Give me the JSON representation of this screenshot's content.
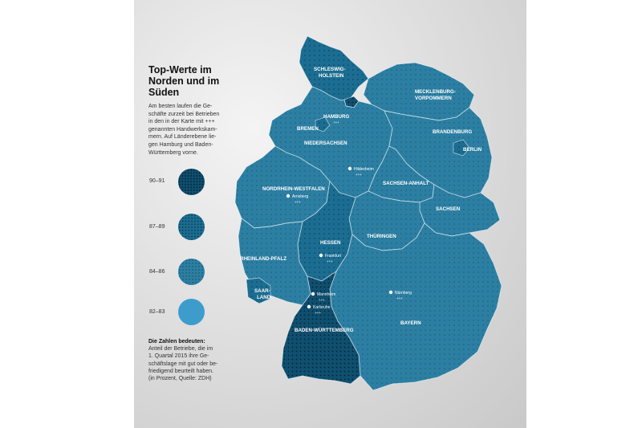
{
  "title": [
    "Top-Werte im",
    "Norden und im",
    "Süden"
  ],
  "intro": [
    "Am besten laufen die Ge-",
    "schäfte zurzeit bei Betrieben",
    "in den in der Karte mit +++",
    "genannten Handwerkskam-",
    "mern. Auf Länderebene lie-",
    "gen Hamburg und Baden-",
    "Württemberg vorne."
  ],
  "legend": [
    {
      "label": "90–91",
      "color": "#0f4f70"
    },
    {
      "label": "87–89",
      "color": "#1b6d92"
    },
    {
      "label": "84–86",
      "color": "#2c7fa3"
    },
    {
      "label": "82–83",
      "color": "#3d9ccc"
    }
  ],
  "footnote": {
    "heading": "Die Zahlen bedeuten:",
    "lines": [
      "Anteil der Betriebe, die im",
      "1. Quartal 2015 ihre Ge-",
      "schäftslage mit gut oder be-",
      "friedigend beurteilt haben.",
      "(in Prozent, Quelle: ZDH)"
    ]
  },
  "states": {
    "schleswig_holstein": [
      "SCHLESWIG-",
      "HOLSTEIN"
    ],
    "hamburg": "HAMBURG",
    "mecklenburg_vorpommern": [
      "MECKLENBURG-",
      "VORPOMMERN"
    ],
    "bremen": "BREMEN",
    "niedersachsen": "NIEDERSACHSEN",
    "brandenburg": "BRANDENBURG",
    "berlin": "BERLIN",
    "sachsen_anhalt": "SACHSEN-ANHALT",
    "nordrhein_westfalen": "NORDRHEIN-WESTFALEN",
    "sachsen": "SACHSEN",
    "hessen": "HESSEN",
    "thueringen": "THÜRINGEN",
    "rheinland_pfalz": "RHEINLAND-PFALZ",
    "saarland": [
      "SAAR-",
      "LAND"
    ],
    "bayern": "BAYERN",
    "baden_wuerttemberg": "BADEN-WÜRTTEMBERG"
  },
  "cities": {
    "hildesheim": "Hildesheim",
    "arnsberg": "Arnsberg",
    "frankfurt": "Frankfurt",
    "mannheim": "Mannheim",
    "karlsruhe": "Karlsruhe",
    "nuernberg": "Nürnberg"
  },
  "stars": "+++",
  "colors": {
    "background": "#d9d9d9",
    "state_default": "#2c7fa3",
    "state_mid": "#1b6d92",
    "state_dark": "#0f4f70",
    "state_light": "#3d9ccc",
    "text": "#111111",
    "label": "#ffffff"
  }
}
